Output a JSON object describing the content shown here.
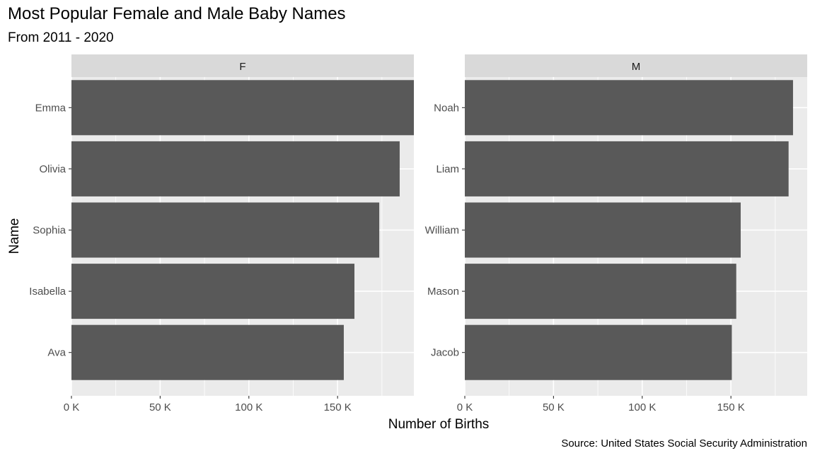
{
  "title": "Most Popular Female and Male Baby Names",
  "subtitle": "From 2011 - 2020",
  "caption": "Source: United States Social Security Administration",
  "colors": {
    "bar": "#595959",
    "panel_bg": "#ebebeb",
    "strip_bg": "#d9d9d9",
    "grid": "#ffffff",
    "tick": "#333333",
    "tick_label": "#4d4d4d"
  },
  "chart_data": {
    "type": "bar",
    "orientation": "horizontal",
    "xlabel": "Number of Births",
    "ylabel": "Name",
    "xlim": [
      0,
      193000
    ],
    "x_ticks": [
      0,
      50000,
      100000,
      150000
    ],
    "x_tick_labels": [
      "0 K",
      "50 K",
      "100 K",
      "150 K"
    ],
    "grid": true,
    "facets": [
      {
        "label": "F",
        "categories": [
          "Emma",
          "Olivia",
          "Sophia",
          "Isabella",
          "Ava"
        ],
        "values": [
          194000,
          185000,
          173500,
          159500,
          153500
        ]
      },
      {
        "label": "M",
        "categories": [
          "Noah",
          "Liam",
          "William",
          "Mason",
          "Jacob"
        ],
        "values": [
          185000,
          182500,
          155500,
          153000,
          150500
        ]
      }
    ]
  }
}
